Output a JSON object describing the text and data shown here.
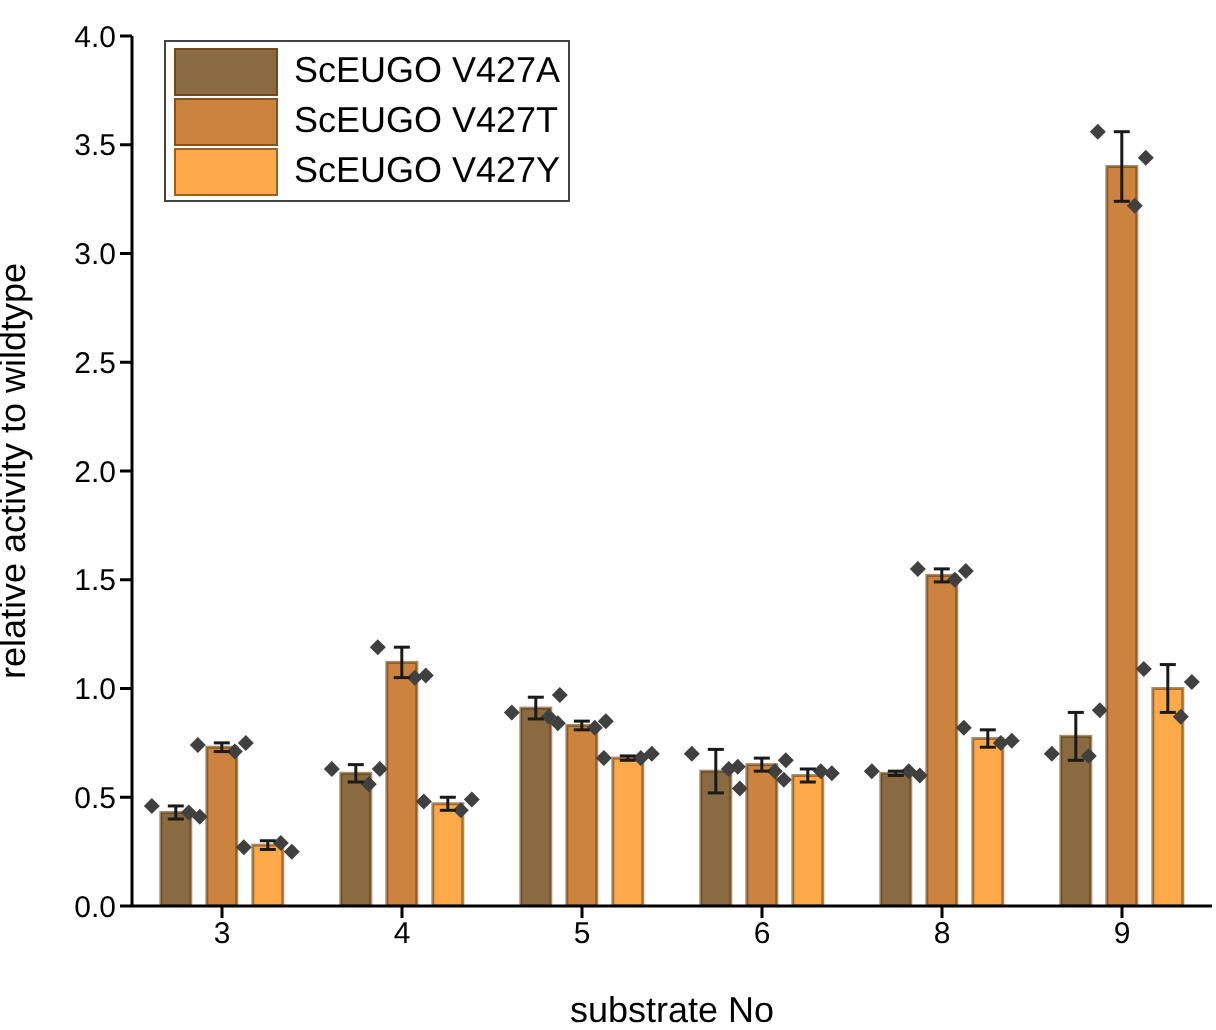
{
  "chart_data": {
    "type": "bar",
    "xlabel": "substrate No",
    "ylabel": "relative activity to wildtype",
    "categories": [
      "3",
      "4",
      "5",
      "6",
      "8",
      "9"
    ],
    "series": [
      {
        "name": "ScEUGO V427A",
        "color": "#8a6a40",
        "values": [
          0.43,
          0.61,
          0.91,
          0.62,
          0.61,
          0.78
        ],
        "errors": [
          0.03,
          0.04,
          0.05,
          0.1,
          0.01,
          0.11
        ]
      },
      {
        "name": "ScEUGO V427T",
        "color": "#cc833e",
        "values": [
          0.73,
          1.12,
          0.83,
          0.65,
          1.52,
          3.4
        ],
        "errors": [
          0.02,
          0.07,
          0.02,
          0.03,
          0.03,
          0.16
        ]
      },
      {
        "name": "ScEUGO V427Y",
        "color": "#ffaa4a",
        "values": [
          0.28,
          0.47,
          0.68,
          0.6,
          0.77,
          1.0
        ],
        "errors": [
          0.02,
          0.03,
          0.01,
          0.03,
          0.04,
          0.11
        ]
      },
      {
        "type": "scatter",
        "color": "#404040",
        "marker": "diamond",
        "x": [
          "3",
          "3",
          "3",
          "4",
          "4",
          "4",
          "5",
          "5",
          "5",
          "6",
          "6",
          "6",
          "8",
          "8",
          "8",
          "9",
          "9",
          "9"
        ],
        "values": [
          0.46,
          0.41,
          0.43,
          0.63,
          0.63,
          0.56,
          0.89,
          0.97,
          0.87,
          0.7,
          0.54,
          0.63,
          0.62,
          0.6,
          0.62,
          0.7,
          0.9,
          0.69
        ]
      },
      {
        "type": "scatter",
        "color": "#404040",
        "marker": "diamond",
        "x": [
          "3",
          "3",
          "3",
          "4",
          "4",
          "4",
          "5",
          "5",
          "5",
          "6",
          "6",
          "6",
          "8",
          "8",
          "8",
          "9",
          "9",
          "9"
        ],
        "values": [
          0.74,
          0.75,
          0.71,
          1.19,
          1.06,
          1.05,
          0.84,
          0.85,
          0.82,
          0.64,
          0.67,
          0.62,
          1.55,
          1.54,
          1.5,
          3.56,
          3.44,
          3.22
        ]
      },
      {
        "type": "scatter",
        "color": "#404040",
        "marker": "diamond",
        "x": [
          "3",
          "3",
          "3",
          "4",
          "4",
          "4",
          "5",
          "5",
          "5",
          "6",
          "6",
          "6",
          "8",
          "8",
          "8",
          "9",
          "9",
          "9"
        ],
        "values": [
          0.27,
          0.25,
          0.29,
          0.48,
          0.49,
          0.44,
          0.68,
          0.7,
          0.68,
          0.58,
          0.61,
          0.62,
          0.82,
          0.76,
          0.75,
          1.09,
          1.03,
          0.87
        ]
      }
    ],
    "ylim": [
      0,
      4
    ],
    "yticks": [
      {
        "value": 0,
        "label": "0.0"
      },
      {
        "value": 0.5,
        "label": "0.5"
      },
      {
        "value": 1,
        "label": "1.0"
      },
      {
        "value": 1.5,
        "label": "1.5"
      },
      {
        "value": 2,
        "label": "2.0"
      },
      {
        "value": 2.5,
        "label": "2.5"
      },
      {
        "value": 3,
        "label": "3.0"
      },
      {
        "value": 3.5,
        "label": "3.5"
      },
      {
        "value": 4,
        "label": "4.0"
      }
    ],
    "grid": false,
    "legend": "top left"
  }
}
